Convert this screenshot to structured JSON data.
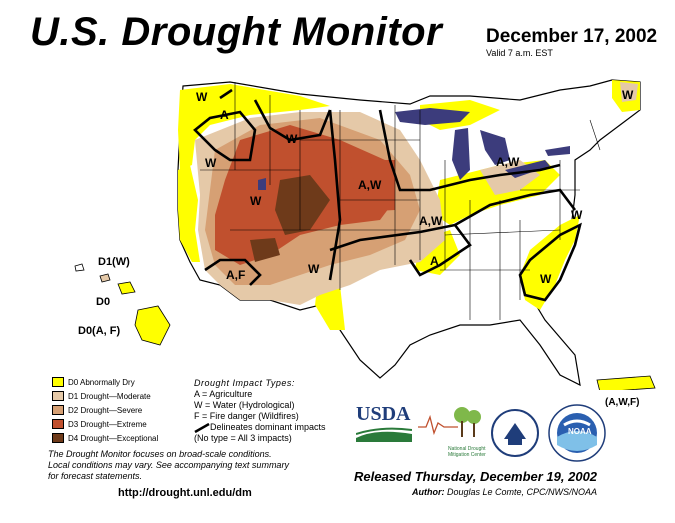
{
  "header": {
    "title": "U.S. Drought Monitor",
    "date": "December 17, 2002",
    "valid": "Valid 7 a.m. EST"
  },
  "legend": {
    "items": [
      {
        "label": "D0 Abnormally Dry",
        "color": "#ffff00"
      },
      {
        "label": "D1 Drought—Moderate",
        "color": "#e5c9a8"
      },
      {
        "label": "D2 Drought—Severe",
        "color": "#d6a074"
      },
      {
        "label": "D3 Drought—Extreme",
        "color": "#c0502e"
      },
      {
        "label": "D4 Drought—Exceptional",
        "color": "#6e3a1a"
      }
    ]
  },
  "impact_types": {
    "title": "Drought Impact Types:",
    "lines": [
      "A = Agriculture",
      "W = Water (Hydrological)",
      "F = Fire danger (Wildfires)"
    ],
    "delineates": "Delineates dominant impacts",
    "no_type": "(No type = All 3 impacts)"
  },
  "footer": {
    "note_line1": "The Drought Monitor focuses on broad-scale conditions.",
    "note_line2": "Local conditions may vary. See accompanying text summary",
    "note_line3": "for forecast statements.",
    "url": "http://drought.unl.edu/dm",
    "released": "Released Thursday, December 19, 2002",
    "author_label": "Author:",
    "author": "Douglas Le Comte, CPC/NWS/NOAA"
  },
  "map_labels": {
    "w_nw": "W",
    "a_nw": "A",
    "w_mt": "W",
    "w_ne": "W",
    "w_id": "W",
    "w_co": "W",
    "aw_ne": "A,W",
    "aw_mi": "A,W",
    "aw_mo": "A,W",
    "a_ar": "A",
    "w_va": "W",
    "w_ga": "W",
    "w_tx": "W",
    "af_az": "A,F",
    "w_me": "W",
    "hi1": "D1(W)",
    "hi2": "D0",
    "hi3": "D0(A, F)",
    "pr": "(A,W,F)"
  },
  "logos": {
    "usda": "USDA",
    "ndmc": "National Drought Mitigation Center",
    "noaa": "NOAA"
  },
  "colors": {
    "water": "#3c3c7c",
    "border": "#000000"
  }
}
